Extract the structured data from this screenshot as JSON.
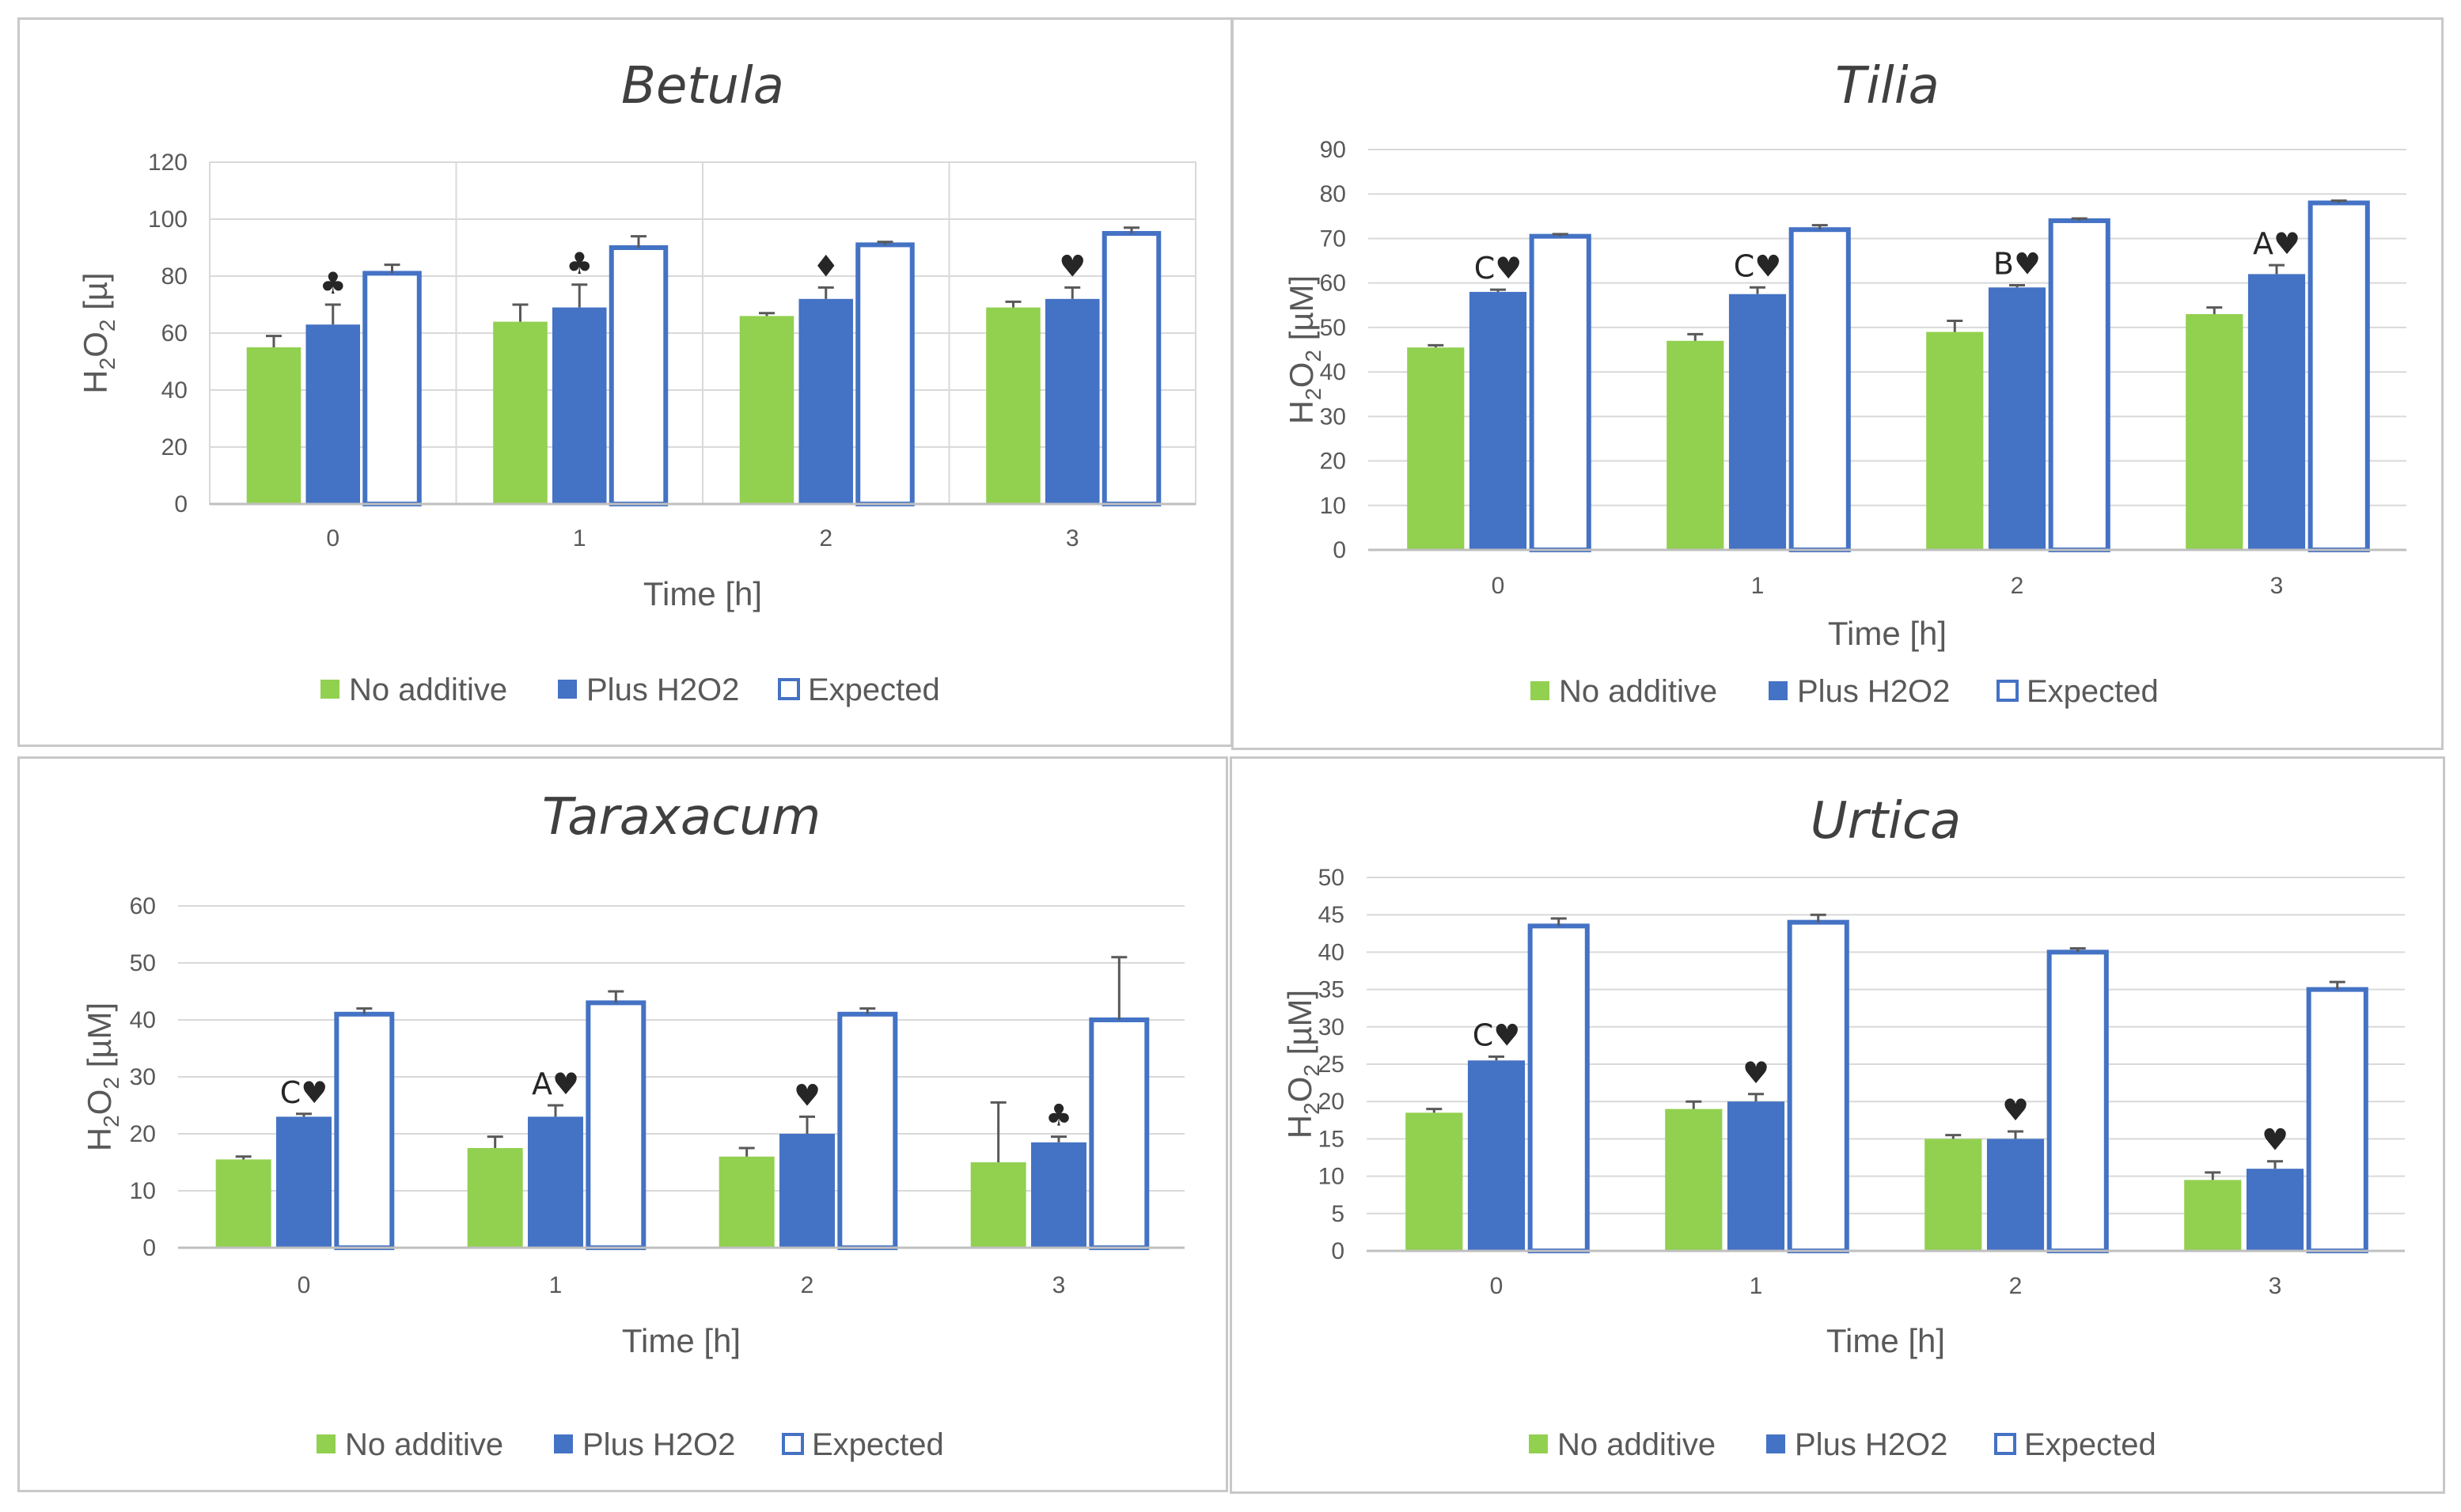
{
  "colors": {
    "no_additive": "#92d050",
    "plus_h2o2": "#4472c4",
    "expected_stroke": "#4472c4",
    "expected_fill": "#ffffff",
    "grid": "#d9d9d9",
    "error": "#595959"
  },
  "legend": [
    "No additive",
    "Plus H2O2",
    "Expected"
  ],
  "chart_data": [
    {
      "type": "bar",
      "title": "Betula",
      "xlabel": "Time [h]",
      "ylabel_main": "H",
      "ylabel_sub1": "2",
      "ylabel_mid": "O",
      "ylabel_sub2": "2",
      "ylabel_unit": " [µ]",
      "categories": [
        "0",
        "1",
        "2",
        "3"
      ],
      "ylim": [
        0,
        120
      ],
      "yticks": [
        0,
        20,
        40,
        60,
        80,
        100,
        120
      ],
      "vertical_gridlines": true,
      "series": [
        {
          "name": "No additive",
          "values": [
            55,
            64,
            66,
            69
          ],
          "errors": [
            4,
            6,
            1,
            2
          ]
        },
        {
          "name": "Plus H2O2",
          "values": [
            63,
            69,
            72,
            72
          ],
          "errors": [
            7,
            8,
            4,
            4
          ]
        },
        {
          "name": "Expected",
          "values": [
            81,
            90,
            91,
            95
          ],
          "errors": [
            3,
            4,
            1,
            2
          ]
        }
      ],
      "annotations": [
        "♣",
        "♣",
        "♦",
        "♥"
      ]
    },
    {
      "type": "bar",
      "title": "Tilia",
      "xlabel": "Time [h]",
      "ylabel_main": "H",
      "ylabel_sub1": "2",
      "ylabel_mid": "O",
      "ylabel_sub2": "2",
      "ylabel_unit": " [µM]",
      "categories": [
        "0",
        "1",
        "2",
        "3"
      ],
      "ylim": [
        0,
        90
      ],
      "yticks": [
        0,
        10,
        20,
        30,
        40,
        50,
        60,
        70,
        80,
        90
      ],
      "vertical_gridlines": false,
      "series": [
        {
          "name": "No additive",
          "values": [
            45.5,
            47,
            49,
            53
          ],
          "errors": [
            0.5,
            1.5,
            2.5,
            1.5
          ]
        },
        {
          "name": "Plus H2O2",
          "values": [
            58,
            57.5,
            59,
            62
          ],
          "errors": [
            0.5,
            1.5,
            0.5,
            2
          ]
        },
        {
          "name": "Expected",
          "values": [
            70.5,
            72,
            74,
            78
          ],
          "errors": [
            0.5,
            1,
            0.5,
            0.5
          ]
        }
      ],
      "annotations": [
        "C♥",
        "C♥",
        "B♥",
        "A♥"
      ]
    },
    {
      "type": "bar",
      "title": "Taraxacum",
      "xlabel": "Time [h]",
      "ylabel_main": "H",
      "ylabel_sub1": "2",
      "ylabel_mid": "O",
      "ylabel_sub2": "2",
      "ylabel_unit": " [µM]",
      "categories": [
        "0",
        "1",
        "2",
        "3"
      ],
      "ylim": [
        0,
        60
      ],
      "yticks": [
        0,
        10,
        20,
        30,
        40,
        50,
        60
      ],
      "vertical_gridlines": false,
      "series": [
        {
          "name": "No additive",
          "values": [
            15.5,
            17.5,
            16,
            15
          ],
          "errors": [
            0.5,
            2,
            1.5,
            10.5
          ]
        },
        {
          "name": "Plus H2O2",
          "values": [
            23,
            23,
            20,
            18.5
          ],
          "errors": [
            0.5,
            2,
            3,
            1
          ]
        },
        {
          "name": "Expected",
          "values": [
            41,
            43,
            41,
            40
          ],
          "errors": [
            1,
            2,
            1,
            11
          ]
        }
      ],
      "annotations": [
        "C♥",
        "A♥",
        "♥",
        "♣"
      ]
    },
    {
      "type": "bar",
      "title": "Urtica",
      "xlabel": "Time [h]",
      "ylabel_main": "H",
      "ylabel_sub1": "2",
      "ylabel_mid": "O",
      "ylabel_sub2": "2",
      "ylabel_unit": " [µM]",
      "categories": [
        "0",
        "1",
        "2",
        "3"
      ],
      "ylim": [
        0,
        50
      ],
      "yticks": [
        0,
        5,
        10,
        15,
        20,
        25,
        30,
        35,
        40,
        45,
        50
      ],
      "vertical_gridlines": false,
      "series": [
        {
          "name": "No additive",
          "values": [
            18.5,
            19,
            15,
            9.5
          ],
          "errors": [
            0.5,
            1,
            0.5,
            1
          ]
        },
        {
          "name": "Plus H2O2",
          "values": [
            25.5,
            20,
            15,
            11
          ],
          "errors": [
            0.5,
            1,
            1,
            1
          ]
        },
        {
          "name": "Expected",
          "values": [
            43.5,
            44,
            40,
            35
          ],
          "errors": [
            1,
            1,
            0.5,
            1
          ]
        }
      ],
      "annotations": [
        "C♥",
        "♥",
        "♥",
        "♥"
      ]
    }
  ]
}
